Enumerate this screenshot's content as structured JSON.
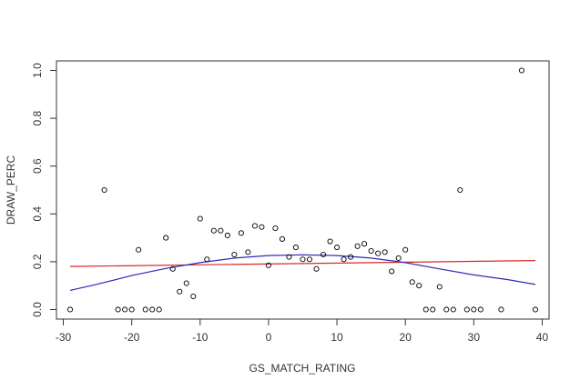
{
  "chart_data": {
    "type": "scatter",
    "title": "",
    "xlabel": "GS_MATCH_RATING",
    "ylabel": "DRAW_PERC",
    "xlim": [
      -31,
      41
    ],
    "ylim": [
      -0.04,
      1.04
    ],
    "xticks": [
      -30,
      -20,
      -10,
      0,
      10,
      20,
      30,
      40
    ],
    "yticks": [
      0.0,
      0.2,
      0.4,
      0.6,
      0.8,
      1.0
    ],
    "xtick_labels": [
      "-30",
      "-20",
      "-10",
      "0",
      "10",
      "20",
      "30",
      "40"
    ],
    "ytick_labels": [
      "0.0",
      "0.2",
      "0.4",
      "0.6",
      "0.8",
      "1.0"
    ],
    "grid": false,
    "series": [
      {
        "name": "points",
        "style": "open-circle",
        "color": "#000000",
        "points": [
          {
            "x": -29,
            "y": 0.0
          },
          {
            "x": -24,
            "y": 0.5
          },
          {
            "x": -22,
            "y": 0.0
          },
          {
            "x": -21,
            "y": 0.0
          },
          {
            "x": -20,
            "y": 0.0
          },
          {
            "x": -19,
            "y": 0.25
          },
          {
            "x": -18,
            "y": 0.0
          },
          {
            "x": -17,
            "y": 0.0
          },
          {
            "x": -16,
            "y": 0.0
          },
          {
            "x": -15,
            "y": 0.3
          },
          {
            "x": -14,
            "y": 0.17
          },
          {
            "x": -13,
            "y": 0.075
          },
          {
            "x": -12,
            "y": 0.11
          },
          {
            "x": -11,
            "y": 0.055
          },
          {
            "x": -10,
            "y": 0.38
          },
          {
            "x": -9,
            "y": 0.21
          },
          {
            "x": -8,
            "y": 0.33
          },
          {
            "x": -7,
            "y": 0.33
          },
          {
            "x": -6,
            "y": 0.31
          },
          {
            "x": -5,
            "y": 0.23
          },
          {
            "x": -4,
            "y": 0.32
          },
          {
            "x": -3,
            "y": 0.24
          },
          {
            "x": -2,
            "y": 0.35
          },
          {
            "x": -1,
            "y": 0.345
          },
          {
            "x": 0,
            "y": 0.185
          },
          {
            "x": 1,
            "y": 0.34
          },
          {
            "x": 2,
            "y": 0.295
          },
          {
            "x": 3,
            "y": 0.22
          },
          {
            "x": 4,
            "y": 0.26
          },
          {
            "x": 5,
            "y": 0.21
          },
          {
            "x": 6,
            "y": 0.21
          },
          {
            "x": 7,
            "y": 0.17
          },
          {
            "x": 8,
            "y": 0.23
          },
          {
            "x": 9,
            "y": 0.285
          },
          {
            "x": 10,
            "y": 0.26
          },
          {
            "x": 11,
            "y": 0.21
          },
          {
            "x": 12,
            "y": 0.22
          },
          {
            "x": 13,
            "y": 0.265
          },
          {
            "x": 14,
            "y": 0.275
          },
          {
            "x": 15,
            "y": 0.245
          },
          {
            "x": 16,
            "y": 0.235
          },
          {
            "x": 17,
            "y": 0.24
          },
          {
            "x": 18,
            "y": 0.16
          },
          {
            "x": 19,
            "y": 0.215
          },
          {
            "x": 20,
            "y": 0.25
          },
          {
            "x": 21,
            "y": 0.115
          },
          {
            "x": 22,
            "y": 0.1
          },
          {
            "x": 23,
            "y": 0.0
          },
          {
            "x": 24,
            "y": 0.0
          },
          {
            "x": 25,
            "y": 0.095
          },
          {
            "x": 26,
            "y": 0.0
          },
          {
            "x": 27,
            "y": 0.0
          },
          {
            "x": 28,
            "y": 0.5
          },
          {
            "x": 29,
            "y": 0.0
          },
          {
            "x": 30,
            "y": 0.0
          },
          {
            "x": 31,
            "y": 0.0
          },
          {
            "x": 34,
            "y": 0.0
          },
          {
            "x": 37,
            "y": 1.0
          },
          {
            "x": 39,
            "y": 0.0
          }
        ]
      },
      {
        "name": "linear fit",
        "style": "line",
        "color": "#d9282b",
        "points": [
          {
            "x": -29,
            "y": 0.18
          },
          {
            "x": 39,
            "y": 0.205
          }
        ]
      },
      {
        "name": "quadratic fit",
        "style": "line",
        "color": "#2b2bb8",
        "points": [
          {
            "x": -29,
            "y": 0.08
          },
          {
            "x": -25,
            "y": 0.106
          },
          {
            "x": -20,
            "y": 0.142
          },
          {
            "x": -15,
            "y": 0.172
          },
          {
            "x": -10,
            "y": 0.196
          },
          {
            "x": -5,
            "y": 0.215
          },
          {
            "x": 0,
            "y": 0.226
          },
          {
            "x": 5,
            "y": 0.229
          },
          {
            "x": 10,
            "y": 0.226
          },
          {
            "x": 15,
            "y": 0.215
          },
          {
            "x": 20,
            "y": 0.196
          },
          {
            "x": 25,
            "y": 0.17
          },
          {
            "x": 30,
            "y": 0.145
          },
          {
            "x": 35,
            "y": 0.125
          },
          {
            "x": 39,
            "y": 0.105
          }
        ]
      }
    ]
  }
}
